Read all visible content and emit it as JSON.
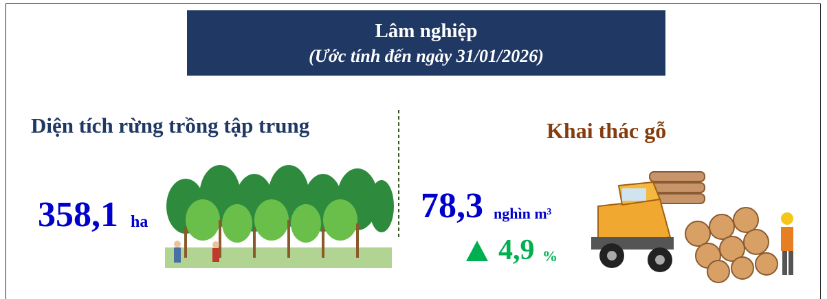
{
  "header": {
    "title": "Lâm nghiệp",
    "subtitle": "(Ước tính đến ngày 31/01/2026)"
  },
  "left": {
    "title": "Diện tích rừng trồng tập trung",
    "value": "358,1",
    "unit": "ha"
  },
  "right": {
    "title": "Khai thác gỗ",
    "value": "78,3",
    "unit": "nghìn m³",
    "change": "4,9",
    "change_unit": "%"
  }
}
